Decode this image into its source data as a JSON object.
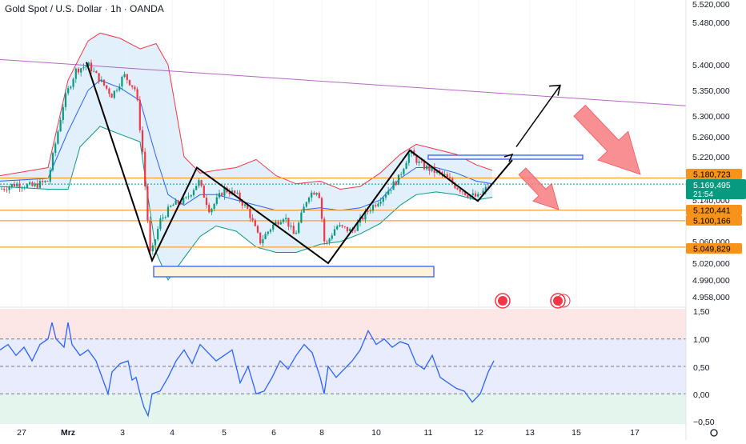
{
  "header": {
    "title": "Gold Spot / U.S. Dollar · 1h · OANDA"
  },
  "chart_data": [
    {
      "type": "candlestick",
      "symbol": "Gold Spot / U.S. Dollar",
      "interval": "1h",
      "source": "OANDA",
      "x_tick_labels": [
        "27",
        "Mrz",
        "3",
        "4",
        "5",
        "6",
        "8",
        "10",
        "11",
        "12",
        "13",
        "15",
        "17"
      ],
      "y_tick_labels": [
        "5.520,000",
        "5.480,000",
        "5.400,000",
        "5.350,000",
        "5.300,000",
        "5.260,000",
        "5.220,000",
        "5.140,000",
        "5.060,000",
        "5.020,000",
        "4.990,000",
        "4.958,000"
      ],
      "ylim": [
        4958,
        5520
      ],
      "price_labels": [
        {
          "text": "5.180,723",
          "value": 5180.723,
          "kind": "level"
        },
        {
          "text": "5.169,495",
          "countdown": "21:54",
          "value": 5169.495,
          "kind": "last"
        },
        {
          "text": "5.120,441",
          "value": 5120.441,
          "kind": "level"
        },
        {
          "text": "5.100,166",
          "value": 5100.166,
          "kind": "level"
        },
        {
          "text": "5.049,829",
          "value": 5049.829,
          "kind": "level"
        }
      ],
      "horizontal_levels": [
        5180.723,
        5120.441,
        5100.166,
        5049.829
      ],
      "candle_path": [
        [
          0,
          5160
        ],
        [
          20,
          5170
        ],
        [
          40,
          5165
        ],
        [
          60,
          5175
        ],
        [
          80,
          5330
        ],
        [
          95,
          5390
        ],
        [
          110,
          5400
        ],
        [
          125,
          5370
        ],
        [
          140,
          5340
        ],
        [
          155,
          5380
        ],
        [
          170,
          5350
        ],
        [
          178,
          5230
        ],
        [
          188,
          5030
        ],
        [
          200,
          5100
        ],
        [
          215,
          5130
        ],
        [
          232,
          5140
        ],
        [
          248,
          5175
        ],
        [
          262,
          5120
        ],
        [
          280,
          5160
        ],
        [
          295,
          5150
        ],
        [
          310,
          5120
        ],
        [
          325,
          5060
        ],
        [
          340,
          5090
        ],
        [
          355,
          5110
        ],
        [
          368,
          5070
        ],
        [
          385,
          5150
        ],
        [
          398,
          5160
        ],
        [
          406,
          5050
        ],
        [
          420,
          5090
        ],
        [
          440,
          5080
        ],
        [
          460,
          5120
        ],
        [
          480,
          5150
        ],
        [
          498,
          5180
        ],
        [
          512,
          5230
        ],
        [
          525,
          5205
        ],
        [
          540,
          5195
        ],
        [
          555,
          5185
        ],
        [
          570,
          5165
        ],
        [
          585,
          5150
        ],
        [
          597,
          5145
        ],
        [
          610,
          5165
        ]
      ],
      "bollinger": {
        "upper": [
          [
            0,
            5185
          ],
          [
            60,
            5200
          ],
          [
            85,
            5370
          ],
          [
            110,
            5445
          ],
          [
            125,
            5460
          ],
          [
            150,
            5450
          ],
          [
            175,
            5430
          ],
          [
            195,
            5440
          ],
          [
            210,
            5400
          ],
          [
            230,
            5220
          ],
          [
            250,
            5190
          ],
          [
            270,
            5195
          ],
          [
            295,
            5200
          ],
          [
            320,
            5215
          ],
          [
            345,
            5185
          ],
          [
            370,
            5170
          ],
          [
            400,
            5175
          ],
          [
            425,
            5160
          ],
          [
            450,
            5165
          ],
          [
            475,
            5190
          ],
          [
            500,
            5225
          ],
          [
            520,
            5245
          ],
          [
            545,
            5235
          ],
          [
            570,
            5225
          ],
          [
            595,
            5205
          ],
          [
            615,
            5195
          ]
        ],
        "middle": [
          [
            0,
            5175
          ],
          [
            60,
            5180
          ],
          [
            85,
            5270
          ],
          [
            110,
            5350
          ],
          [
            125,
            5370
          ],
          [
            150,
            5355
          ],
          [
            175,
            5330
          ],
          [
            195,
            5220
          ],
          [
            210,
            5150
          ],
          [
            230,
            5130
          ],
          [
            250,
            5150
          ],
          [
            270,
            5150
          ],
          [
            295,
            5140
          ],
          [
            320,
            5130
          ],
          [
            345,
            5120
          ],
          [
            370,
            5120
          ],
          [
            400,
            5125
          ],
          [
            425,
            5120
          ],
          [
            450,
            5125
          ],
          [
            475,
            5140
          ],
          [
            500,
            5180
          ],
          [
            520,
            5200
          ],
          [
            545,
            5200
          ],
          [
            570,
            5190
          ],
          [
            595,
            5175
          ],
          [
            615,
            5170
          ]
        ],
        "lower": [
          [
            0,
            5165
          ],
          [
            60,
            5160
          ],
          [
            85,
            5160
          ],
          [
            100,
            5240
          ],
          [
            125,
            5280
          ],
          [
            150,
            5265
          ],
          [
            175,
            5250
          ],
          [
            195,
            5040
          ],
          [
            210,
            4990
          ],
          [
            230,
            5030
          ],
          [
            250,
            5070
          ],
          [
            270,
            5090
          ],
          [
            295,
            5080
          ],
          [
            320,
            5050
          ],
          [
            345,
            5040
          ],
          [
            370,
            5040
          ],
          [
            400,
            5055
          ],
          [
            425,
            5060
          ],
          [
            450,
            5075
          ],
          [
            475,
            5095
          ],
          [
            500,
            5130
          ],
          [
            520,
            5150
          ],
          [
            545,
            5155
          ],
          [
            570,
            5150
          ],
          [
            595,
            5140
          ],
          [
            615,
            5145
          ]
        ]
      },
      "zigzag_pattern": [
        [
          108,
          5405
        ],
        [
          190,
          5025
        ],
        [
          246,
          5200
        ],
        [
          410,
          5020
        ],
        [
          512,
          5233
        ],
        [
          597,
          5138
        ],
        [
          640,
          5214
        ]
      ],
      "trendline": {
        "from": [
          0,
          5410
        ],
        "to": [
          857,
          5320
        ]
      },
      "projection_path": [
        [
          645,
          5240
        ],
        [
          700,
          5360
        ]
      ],
      "projection_arrowhead_at": [
        700,
        5360
      ],
      "zones": [
        {
          "x": [
            192,
            542
          ],
          "y": [
            4997,
            5010
          ]
        },
        {
          "x": [
            535,
            728
          ],
          "y": [
            5208,
            5220
          ]
        }
      ],
      "bearish_arrows": [
        {
          "tip": [
            800,
            5188
          ],
          "from_angle": "down-right"
        },
        {
          "tip": [
            698,
            5110
          ],
          "from_angle": "down-right"
        }
      ],
      "event_markers_x": [
        628,
        697
      ]
    },
    {
      "type": "line",
      "title": "",
      "y_tick_labels": [
        "1,50",
        "1,00",
        "0,50",
        "0,00",
        "−0,50"
      ],
      "ylim": [
        -0.55,
        1.55
      ],
      "bands": [
        {
          "y": [
            1.0,
            1.55
          ],
          "color": "#fde6e6"
        },
        {
          "y": [
            0.0,
            1.0
          ],
          "color": "#e8ecfd"
        },
        {
          "y": [
            -0.55,
            0.0
          ],
          "color": "#e4f5ee"
        }
      ],
      "levels": [
        1.0,
        0.5,
        0.0
      ],
      "x": [
        0,
        10,
        20,
        30,
        40,
        50,
        60,
        65,
        70,
        80,
        85,
        90,
        100,
        110,
        120,
        130,
        135,
        140,
        150,
        160,
        165,
        170,
        175,
        180,
        185,
        190,
        200,
        210,
        220,
        230,
        240,
        250,
        260,
        270,
        280,
        290,
        300,
        310,
        320,
        330,
        340,
        350,
        360,
        370,
        380,
        390,
        400,
        405,
        410,
        420,
        430,
        440,
        450,
        460,
        470,
        480,
        490,
        500,
        510,
        520,
        530,
        540,
        550,
        560,
        570,
        580,
        590,
        600,
        610,
        617
      ],
      "y": [
        0.8,
        0.9,
        0.7,
        0.85,
        0.6,
        0.9,
        1.0,
        1.3,
        1.0,
        0.85,
        1.3,
        0.9,
        0.7,
        0.8,
        0.6,
        0.2,
        0.0,
        0.4,
        0.55,
        0.6,
        0.25,
        0.3,
        0.0,
        -0.25,
        -0.4,
        0.0,
        0.05,
        0.3,
        0.6,
        0.8,
        0.55,
        0.9,
        0.75,
        0.6,
        0.7,
        0.8,
        0.2,
        0.5,
        0.0,
        0.05,
        0.3,
        0.6,
        0.45,
        0.7,
        0.9,
        0.75,
        0.3,
        0.0,
        0.5,
        0.3,
        0.45,
        0.6,
        0.8,
        1.15,
        0.9,
        1.0,
        0.85,
        0.95,
        0.9,
        0.55,
        0.45,
        0.7,
        0.3,
        0.2,
        0.1,
        0.05,
        -0.15,
        0.0,
        0.4,
        0.6
      ]
    }
  ],
  "colors": {
    "level_line": "#f7a034",
    "level_label": "#f7931a",
    "last_label": "#089981",
    "bollinger_upper": "#f23645",
    "bollinger_middle": "#2962ff",
    "bollinger_lower": "#089981",
    "bollinger_fill": "#d9ecf9",
    "candle_up": "#089981",
    "candle_down": "#f23645",
    "trendline": "#9c27b0",
    "zigzag": "#000000",
    "zone_border": "#2962ff",
    "zone_fill": "#fdf3dc",
    "bear_arrow": "#f77c80",
    "oscillator": "#2962ff",
    "event_marker": "#f23645"
  }
}
